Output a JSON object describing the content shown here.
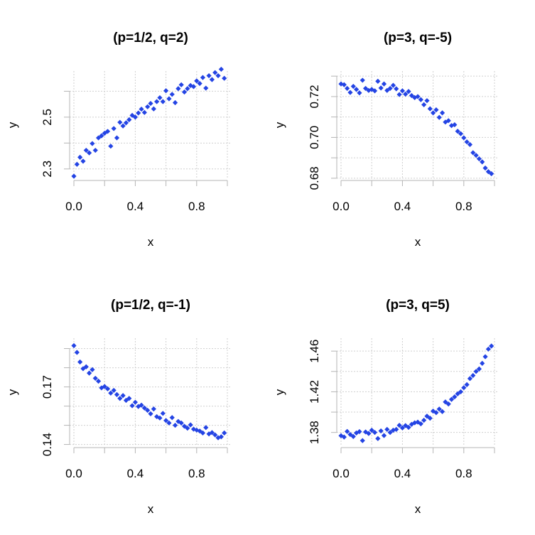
{
  "colors": {
    "point": "#2444e4",
    "axis": "#b4b4b4",
    "grid": "#cfcfcf"
  },
  "chart_data": {
    "type": "scatter",
    "shared_x": [
      0,
      0.02,
      0.04,
      0.06,
      0.08,
      0.1,
      0.12,
      0.14,
      0.16,
      0.18,
      0.2,
      0.22,
      0.24,
      0.26,
      0.28,
      0.3,
      0.32,
      0.34,
      0.36,
      0.38,
      0.4,
      0.42,
      0.44,
      0.46,
      0.48,
      0.5,
      0.52,
      0.54,
      0.56,
      0.58,
      0.6,
      0.62,
      0.64,
      0.66,
      0.68,
      0.7,
      0.72,
      0.74,
      0.76,
      0.78,
      0.8,
      0.82,
      0.84,
      0.86,
      0.88,
      0.9,
      0.92,
      0.94,
      0.96,
      0.98
    ],
    "panels": [
      {
        "title": "(p=1/2, q=2)",
        "xlabel": "x",
        "ylabel": "y",
        "xlim": [
          -0.03,
          1.03
        ],
        "ylim": [
          2.261,
          2.678
        ],
        "grid": true,
        "x_ticks": [
          0,
          0.2,
          0.4,
          0.6,
          0.8,
          1.0
        ],
        "x_tick_labels": [
          "0.0",
          "",
          "0.4",
          "",
          "0.8",
          ""
        ],
        "y_ticks": [
          2.3,
          2.4,
          2.5,
          2.6
        ],
        "y_tick_labels": [
          "2.3",
          "",
          "2.5",
          ""
        ],
        "y": [
          2.272,
          2.318,
          2.345,
          2.33,
          2.372,
          2.362,
          2.398,
          2.372,
          2.42,
          2.428,
          2.438,
          2.445,
          2.388,
          2.456,
          2.42,
          2.48,
          2.466,
          2.478,
          2.49,
          2.507,
          2.5,
          2.516,
          2.531,
          2.518,
          2.54,
          2.553,
          2.532,
          2.56,
          2.575,
          2.56,
          2.602,
          2.571,
          2.588,
          2.556,
          2.61,
          2.625,
          2.597,
          2.61,
          2.622,
          2.618,
          2.64,
          2.63,
          2.653,
          2.612,
          2.66,
          2.645,
          2.672,
          2.66,
          2.685,
          2.65
        ]
      },
      {
        "title": "(p=3, q=-5)",
        "xlabel": "x",
        "ylabel": "y",
        "xlim": [
          -0.03,
          1.03
        ],
        "ylim": [
          0.6796,
          0.7325
        ],
        "grid": true,
        "x_ticks": [
          0,
          0.2,
          0.4,
          0.6,
          0.8,
          1.0
        ],
        "x_tick_labels": [
          "0.0",
          "",
          "0.4",
          "",
          "0.8",
          ""
        ],
        "y_ticks": [
          0.68,
          0.69,
          0.7,
          0.71,
          0.72,
          0.73
        ],
        "y_tick_labels": [
          "0.68",
          "",
          "0.70",
          "",
          "0.72",
          ""
        ],
        "y": [
          0.7262,
          0.7258,
          0.724,
          0.722,
          0.725,
          0.7235,
          0.7218,
          0.728,
          0.724,
          0.723,
          0.7235,
          0.7228,
          0.7275,
          0.7242,
          0.7262,
          0.723,
          0.724,
          0.7255,
          0.7238,
          0.721,
          0.7228,
          0.7212,
          0.7225,
          0.7205,
          0.7195,
          0.72,
          0.7185,
          0.716,
          0.718,
          0.714,
          0.712,
          0.7135,
          0.7098,
          0.712,
          0.7075,
          0.7082,
          0.7058,
          0.7062,
          0.703,
          0.7018,
          0.6998,
          0.6978,
          0.6965,
          0.6925,
          0.6912,
          0.6895,
          0.688,
          0.685,
          0.6832,
          0.6822
        ]
      },
      {
        "title": "(p=1/2, q=-1)",
        "xlabel": "x",
        "ylabel": "y",
        "xlim": [
          -0.03,
          1.03
        ],
        "ylim": [
          0.1391,
          0.1954
        ],
        "grid": true,
        "x_ticks": [
          0,
          0.2,
          0.4,
          0.6,
          0.8,
          1.0
        ],
        "x_tick_labels": [
          "0.0",
          "",
          "0.4",
          "",
          "0.8",
          ""
        ],
        "y_ticks": [
          0.14,
          0.15,
          0.16,
          0.17,
          0.18,
          0.19
        ],
        "y_tick_labels": [
          "0.14",
          "",
          "",
          "0.17",
          "",
          ""
        ],
        "y": [
          0.1915,
          0.188,
          0.183,
          0.1795,
          0.1805,
          0.1772,
          0.179,
          0.1745,
          0.173,
          0.1695,
          0.1702,
          0.169,
          0.1668,
          0.1682,
          0.166,
          0.164,
          0.1655,
          0.163,
          0.164,
          0.1602,
          0.162,
          0.1598,
          0.1605,
          0.159,
          0.1578,
          0.156,
          0.1585,
          0.1545,
          0.1538,
          0.1562,
          0.1525,
          0.1512,
          0.154,
          0.15,
          0.152,
          0.1512,
          0.1495,
          0.1485,
          0.1502,
          0.148,
          0.1475,
          0.147,
          0.146,
          0.1488,
          0.1455,
          0.1462,
          0.145,
          0.1435,
          0.144,
          0.146
        ]
      },
      {
        "title": "(p=3, q=5)",
        "xlabel": "x",
        "ylabel": "y",
        "xlim": [
          -0.03,
          1.03
        ],
        "ylim": [
          1.3665,
          1.4727
        ],
        "grid": true,
        "x_ticks": [
          0,
          0.2,
          0.4,
          0.6,
          0.8,
          1.0
        ],
        "x_tick_labels": [
          "0.0",
          "",
          "0.4",
          "",
          "0.8",
          ""
        ],
        "y_ticks": [
          1.38,
          1.4,
          1.42,
          1.44,
          1.46
        ],
        "y_tick_labels": [
          "1.38",
          "",
          "1.42",
          "",
          "1.46"
        ],
        "y": [
          1.3768,
          1.3755,
          1.381,
          1.378,
          1.376,
          1.3795,
          1.3808,
          1.372,
          1.3805,
          1.379,
          1.3822,
          1.38,
          1.374,
          1.3815,
          1.377,
          1.383,
          1.38,
          1.3822,
          1.383,
          1.387,
          1.3845,
          1.3868,
          1.385,
          1.388,
          1.3895,
          1.3902,
          1.3885,
          1.392,
          1.396,
          1.394,
          1.401,
          1.3995,
          1.403,
          1.4005,
          1.41,
          1.408,
          1.4125,
          1.415,
          1.418,
          1.42,
          1.424,
          1.427,
          1.433,
          1.436,
          1.44,
          1.4425,
          1.448,
          1.4545,
          1.462,
          1.465
        ]
      }
    ]
  }
}
